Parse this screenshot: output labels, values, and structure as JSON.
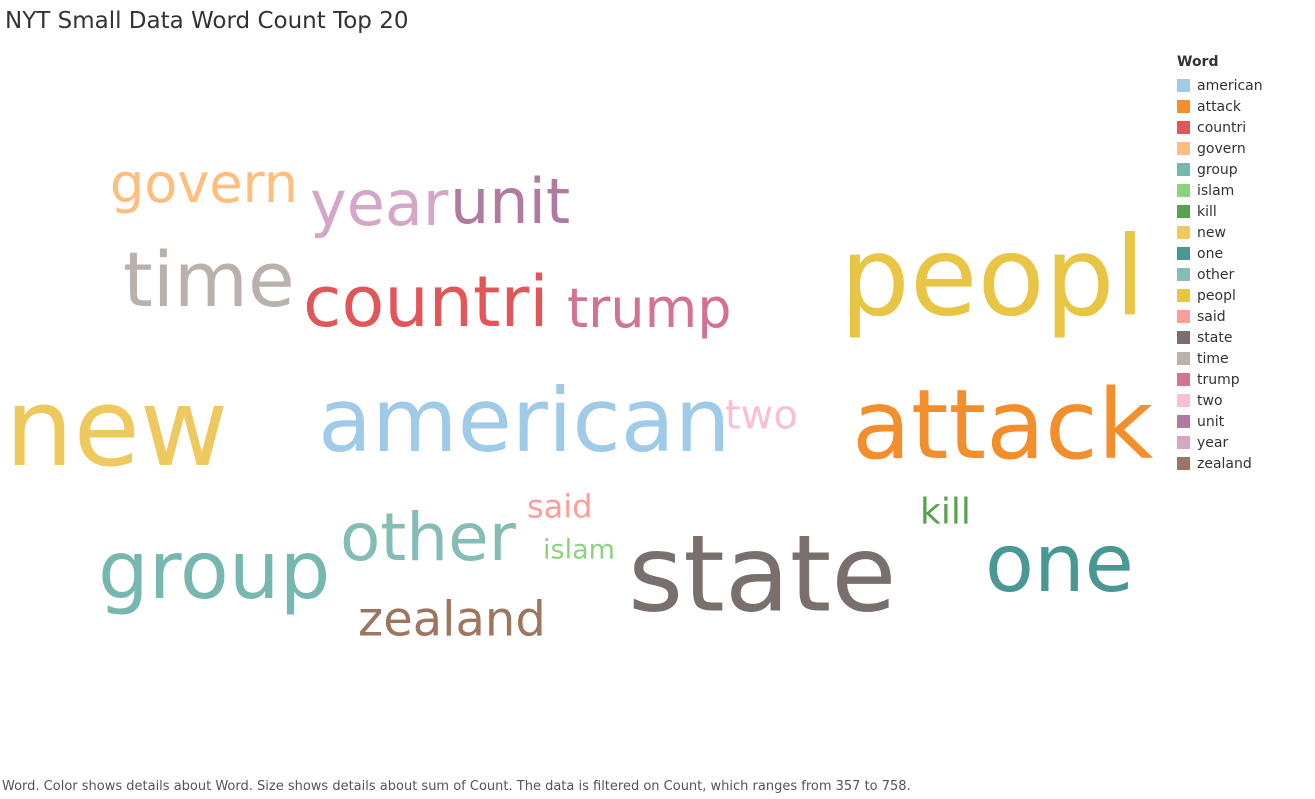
{
  "chart_data": {
    "type": "word_cloud",
    "title": "NYT Small Data Word Count Top 20",
    "legend_title": "Word",
    "legend_placement": "right",
    "words": [
      {
        "word": "new",
        "count": 758,
        "color": "#EDC95E"
      },
      {
        "word": "attack",
        "count": 660,
        "color": "#F28E2B"
      },
      {
        "word": "state",
        "count": 650,
        "color": "#79706E"
      },
      {
        "word": "american",
        "count": 640,
        "color": "#A0CBE8"
      },
      {
        "word": "peopl",
        "count": 630,
        "color": "#E9C546"
      },
      {
        "word": "one",
        "count": 560,
        "color": "#499894"
      },
      {
        "word": "group",
        "count": 545,
        "color": "#76B7B2"
      },
      {
        "word": "countri",
        "count": 535,
        "color": "#E15759"
      },
      {
        "word": "time",
        "count": 520,
        "color": "#BAB0AC"
      },
      {
        "word": "other",
        "count": 500,
        "color": "#86BCB6"
      },
      {
        "word": "govern",
        "count": 470,
        "color": "#FFBE7D"
      },
      {
        "word": "trump",
        "count": 465,
        "color": "#D37295"
      },
      {
        "word": "year",
        "count": 460,
        "color": "#D4A6C8"
      },
      {
        "word": "unit",
        "count": 455,
        "color": "#B07AA1"
      },
      {
        "word": "zealand",
        "count": 450,
        "color": "#9D7660"
      },
      {
        "word": "two",
        "count": 400,
        "color": "#FABFD2"
      },
      {
        "word": "kill",
        "count": 380,
        "color": "#59A14F"
      },
      {
        "word": "said",
        "count": 375,
        "color": "#FF9D9A"
      },
      {
        "word": "islam",
        "count": 357,
        "color": "#8CD17D"
      }
    ],
    "legend": [
      "american",
      "attack",
      "countri",
      "govern",
      "group",
      "islam",
      "kill",
      "new",
      "one",
      "other",
      "peopl",
      "said",
      "state",
      "time",
      "trump",
      "two",
      "unit",
      "year",
      "zealand"
    ]
  },
  "caption": "Word.  Color shows details about Word.  Size shows details about sum of Count. The data is filtered on Count, which ranges from 357 to 758."
}
